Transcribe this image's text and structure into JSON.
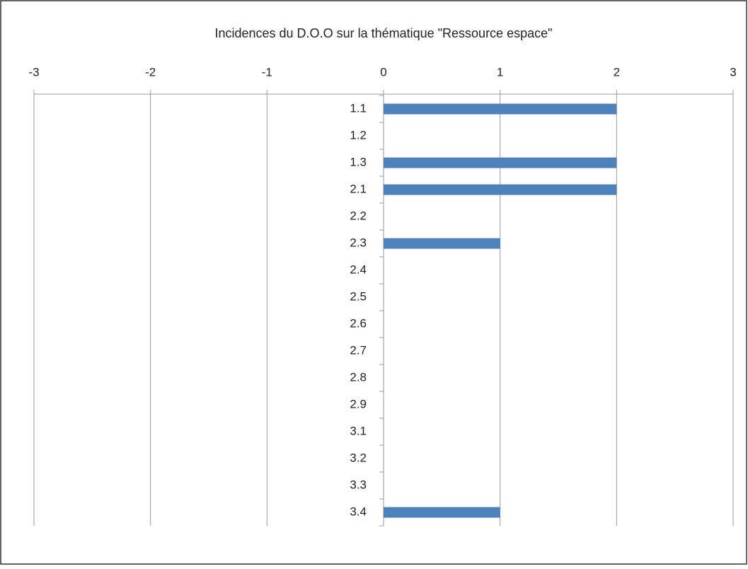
{
  "chart_data": {
    "type": "hbar",
    "title": "Incidences du D.O.O sur la thématique \"Ressource espace\"",
    "categories": [
      "1.1",
      "1.2",
      "1.3",
      "2.1",
      "2.2",
      "2.3",
      "2.4",
      "2.5",
      "2.6",
      "2.7",
      "2.8",
      "2.9",
      "3.1",
      "3.2",
      "3.3",
      "3.4"
    ],
    "values": [
      2,
      0,
      2,
      2,
      0,
      1,
      0,
      0,
      0,
      0,
      0,
      0,
      0,
      0,
      0,
      1
    ],
    "color": "#4f81bd",
    "xlim": [
      -3,
      3
    ],
    "xticks": [
      -3,
      -2,
      -1,
      0,
      1,
      2,
      3
    ],
    "grid": true
  }
}
